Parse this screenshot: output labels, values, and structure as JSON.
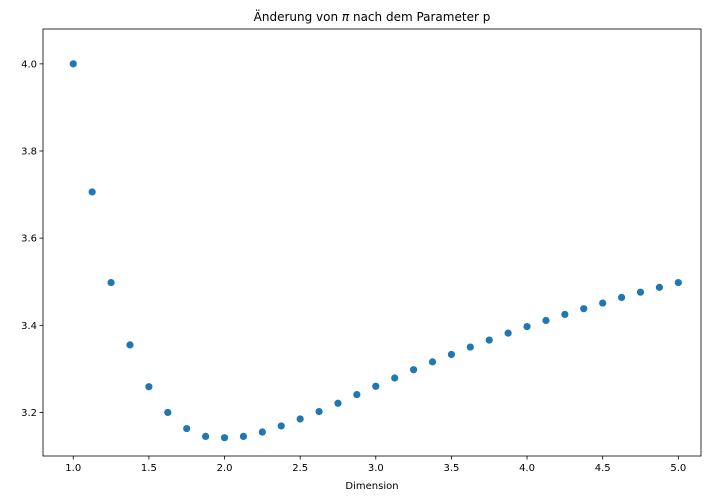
{
  "chart_data": {
    "type": "scatter",
    "title_prefix": "Änderung von ",
    "title_symbol": "π",
    "title_suffix": " nach dem Parameter p",
    "xlabel": "Dimension",
    "ylabel": "",
    "xlim": [
      0.8,
      5.15
    ],
    "ylim": [
      3.1,
      4.08
    ],
    "xticks": [
      1.0,
      1.5,
      2.0,
      2.5,
      3.0,
      3.5,
      4.0,
      4.5,
      5.0
    ],
    "xtick_labels": [
      "1.0",
      "1.5",
      "2.0",
      "2.5",
      "3.0",
      "3.5",
      "4.0",
      "4.5",
      "5.0"
    ],
    "yticks": [
      3.2,
      3.4,
      3.6,
      3.8,
      4.0
    ],
    "ytick_labels": [
      "3.2",
      "3.4",
      "3.6",
      "3.8",
      "4.0"
    ],
    "grid": false,
    "marker_color": "#1f77b4",
    "x": [
      1.0,
      1.125,
      1.25,
      1.375,
      1.5,
      1.625,
      1.75,
      1.875,
      2.0,
      2.125,
      2.25,
      2.375,
      2.5,
      2.625,
      2.75,
      2.875,
      3.0,
      3.125,
      3.25,
      3.375,
      3.5,
      3.625,
      3.75,
      3.875,
      4.0,
      4.125,
      4.25,
      4.375,
      4.5,
      4.625,
      4.75,
      4.875,
      5.0
    ],
    "y": [
      4.0,
      3.706,
      3.498,
      3.355,
      3.259,
      3.2,
      3.163,
      3.145,
      3.142,
      3.145,
      3.155,
      3.169,
      3.185,
      3.202,
      3.221,
      3.241,
      3.26,
      3.279,
      3.298,
      3.316,
      3.333,
      3.35,
      3.366,
      3.382,
      3.397,
      3.411,
      3.425,
      3.438,
      3.451,
      3.464,
      3.476,
      3.487,
      3.498
    ]
  }
}
